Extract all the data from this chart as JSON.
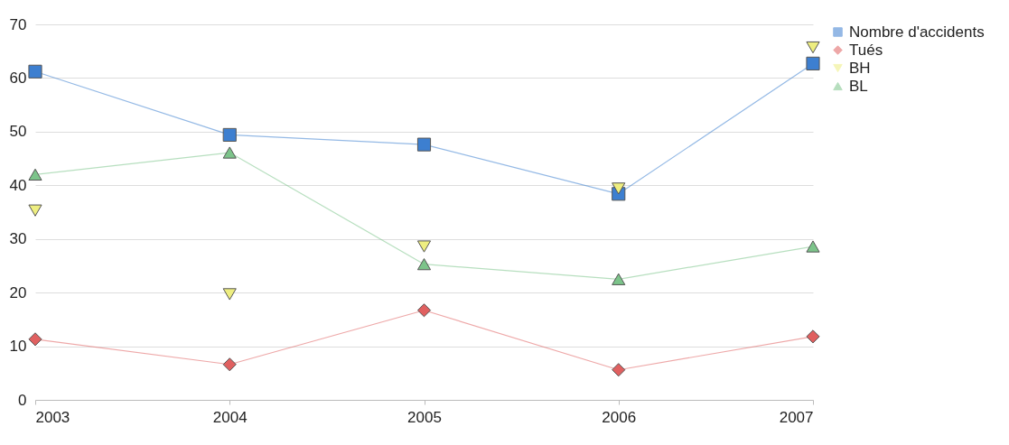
{
  "chart_data": {
    "type": "line",
    "categories": [
      "2003",
      "2004",
      "2005",
      "2006",
      "2007"
    ],
    "series": [
      {
        "name": "Nombre d'accidents",
        "type": "line",
        "marker": "square",
        "color": "#3d7fd0",
        "values": [
          61.2,
          49.4,
          47.6,
          38.4,
          62.7
        ]
      },
      {
        "name": "Tués",
        "type": "line",
        "marker": "diamond",
        "color": "#e06060",
        "values": [
          11.3,
          6.6,
          16.7,
          5.6,
          11.8
        ]
      },
      {
        "name": "BH",
        "type": "scatter",
        "marker": "triangle-down",
        "color": "#eeee80",
        "values": [
          35.3,
          19.7,
          28.6,
          39.4,
          65.7
        ]
      },
      {
        "name": "BL",
        "type": "line",
        "marker": "triangle",
        "color": "#7cc48a",
        "values": [
          42,
          46.1,
          25.3,
          22.5,
          28.6
        ]
      }
    ],
    "ylim": [
      0,
      70
    ],
    "yticks": [
      0,
      10,
      20,
      30,
      40,
      50,
      60,
      70
    ],
    "grid": "y",
    "legend": "right"
  }
}
